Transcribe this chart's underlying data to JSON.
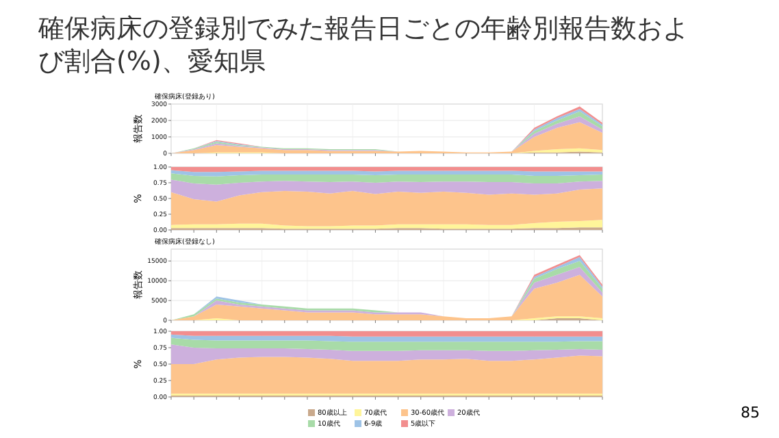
{
  "chart_data": [
    {
      "type": "area",
      "stacked": true,
      "title": "確保病床の登録別でみた報告日ごとの年齢別報告数および割合(%)、愛知県",
      "subtitle": "確保病床(登録あり)",
      "ylabel": "報告数",
      "grid": true,
      "tick_labels": "y",
      "categories": [
        null,
        null,
        null,
        null,
        null,
        null,
        null,
        null,
        null,
        null,
        null,
        null,
        null,
        null,
        null,
        null,
        null,
        null,
        null,
        null
      ],
      "ylim": [
        0,
        3000
      ],
      "yticks": [
        0,
        1000,
        2000,
        3000
      ],
      "series": [
        {
          "color": "#c9a98c",
          "values": [
            0,
            0,
            0,
            0,
            0,
            0,
            0,
            0,
            0,
            0,
            0,
            0,
            0,
            0,
            0,
            0,
            50,
            50,
            100,
            50
          ]
        },
        {
          "color": "#fff59a",
          "values": [
            0,
            0,
            50,
            50,
            50,
            0,
            0,
            0,
            0,
            0,
            0,
            0,
            0,
            0,
            0,
            0,
            100,
            200,
            200,
            150
          ]
        },
        {
          "color": "#fdc48c",
          "values": [
            0,
            200,
            450,
            350,
            250,
            200,
            200,
            150,
            150,
            150,
            100,
            150,
            100,
            50,
            50,
            100,
            850,
            1300,
            1600,
            1050
          ]
        },
        {
          "color": "#cdb0dd",
          "values": [
            0,
            50,
            100,
            50,
            50,
            50,
            50,
            50,
            50,
            50,
            0,
            0,
            0,
            0,
            0,
            0,
            200,
            250,
            350,
            200
          ]
        },
        {
          "color": "#a8dba8",
          "values": [
            0,
            50,
            100,
            50,
            50,
            50,
            50,
            50,
            50,
            50,
            0,
            0,
            0,
            0,
            0,
            0,
            150,
            200,
            300,
            200
          ]
        },
        {
          "color": "#9ec3e6",
          "values": [
            0,
            0,
            50,
            50,
            0,
            0,
            0,
            0,
            0,
            0,
            0,
            0,
            0,
            0,
            0,
            0,
            100,
            150,
            150,
            100
          ]
        },
        {
          "color": "#f28e8e",
          "values": [
            0,
            0,
            50,
            50,
            0,
            0,
            0,
            0,
            0,
            0,
            0,
            0,
            0,
            0,
            0,
            0,
            100,
            100,
            150,
            100
          ]
        }
      ]
    },
    {
      "type": "area",
      "stacked": true,
      "ylabel": "%",
      "grid": true,
      "tick_labels": "y",
      "categories": [
        null,
        null,
        null,
        null,
        null,
        null,
        null,
        null,
        null,
        null,
        null,
        null,
        null,
        null,
        null,
        null,
        null,
        null,
        null,
        null
      ],
      "ylim": [
        0,
        1
      ],
      "yticks": [
        {
          "value": 0,
          "label": "0.00"
        },
        {
          "value": 0.25,
          "label": "0.25"
        },
        {
          "value": 0.5,
          "label": "0.50"
        },
        {
          "value": 0.75,
          "label": "0.75"
        },
        {
          "value": 1,
          "label": "1.00"
        }
      ],
      "series": [
        {
          "color": "#c9a98c",
          "values": [
            0.03,
            0.03,
            0.03,
            0.03,
            0.03,
            0.02,
            0.02,
            0.02,
            0.02,
            0.02,
            0.03,
            0.03,
            0.02,
            0.02,
            0.02,
            0.02,
            0.03,
            0.03,
            0.04,
            0.04
          ]
        },
        {
          "color": "#fff59a",
          "values": [
            0.05,
            0.06,
            0.06,
            0.07,
            0.07,
            0.05,
            0.04,
            0.04,
            0.05,
            0.05,
            0.06,
            0.06,
            0.07,
            0.07,
            0.06,
            0.06,
            0.08,
            0.1,
            0.1,
            0.12
          ]
        },
        {
          "color": "#fdc48c",
          "values": [
            0.52,
            0.4,
            0.36,
            0.45,
            0.5,
            0.55,
            0.55,
            0.52,
            0.55,
            0.5,
            0.52,
            0.5,
            0.52,
            0.5,
            0.48,
            0.5,
            0.45,
            0.45,
            0.5,
            0.5
          ]
        },
        {
          "color": "#cdb0dd",
          "values": [
            0.2,
            0.25,
            0.27,
            0.2,
            0.17,
            0.16,
            0.16,
            0.18,
            0.15,
            0.18,
            0.16,
            0.17,
            0.16,
            0.18,
            0.2,
            0.18,
            0.18,
            0.16,
            0.13,
            0.12
          ]
        },
        {
          "color": "#a8dba8",
          "values": [
            0.1,
            0.12,
            0.13,
            0.12,
            0.11,
            0.1,
            0.11,
            0.12,
            0.11,
            0.12,
            0.11,
            0.12,
            0.11,
            0.11,
            0.12,
            0.12,
            0.12,
            0.12,
            0.1,
            0.1
          ]
        },
        {
          "color": "#9ec3e6",
          "values": [
            0.05,
            0.06,
            0.07,
            0.06,
            0.06,
            0.06,
            0.06,
            0.06,
            0.06,
            0.06,
            0.06,
            0.06,
            0.06,
            0.06,
            0.06,
            0.06,
            0.07,
            0.07,
            0.06,
            0.05
          ]
        },
        {
          "color": "#f28e8e",
          "values": [
            0.05,
            0.08,
            0.08,
            0.07,
            0.06,
            0.06,
            0.06,
            0.06,
            0.06,
            0.07,
            0.06,
            0.06,
            0.06,
            0.06,
            0.06,
            0.06,
            0.07,
            0.07,
            0.07,
            0.07
          ]
        }
      ]
    },
    {
      "type": "area",
      "stacked": true,
      "subtitle": "確保病床(登録なし)",
      "ylabel": "報告数",
      "grid": true,
      "tick_labels": "y",
      "categories": [
        null,
        null,
        null,
        null,
        null,
        null,
        null,
        null,
        null,
        null,
        null,
        null,
        null,
        null,
        null,
        null,
        null,
        null,
        null,
        null
      ],
      "ylim": [
        0,
        18000
      ],
      "yticks": [
        0,
        5000,
        10000,
        15000
      ],
      "series": [
        {
          "color": "#c9a98c",
          "values": [
            0,
            0,
            0,
            0,
            0,
            0,
            0,
            0,
            0,
            0,
            0,
            0,
            0,
            0,
            0,
            0,
            0,
            500,
            500,
            0
          ]
        },
        {
          "color": "#fff59a",
          "values": [
            0,
            0,
            500,
            0,
            0,
            0,
            0,
            0,
            0,
            0,
            0,
            0,
            0,
            0,
            0,
            0,
            500,
            500,
            500,
            500
          ]
        },
        {
          "color": "#fdc48c",
          "values": [
            0,
            1000,
            3500,
            3500,
            3000,
            2500,
            2000,
            2000,
            2000,
            1500,
            1500,
            1500,
            1000,
            500,
            500,
            1000,
            7500,
            8500,
            10500,
            5500
          ]
        },
        {
          "color": "#cdb0dd",
          "values": [
            0,
            0,
            1000,
            500,
            500,
            500,
            500,
            500,
            500,
            500,
            500,
            500,
            0,
            0,
            0,
            0,
            1500,
            2000,
            2000,
            1000
          ]
        },
        {
          "color": "#a8dba8",
          "values": [
            0,
            500,
            500,
            500,
            500,
            500,
            500,
            500,
            500,
            500,
            0,
            0,
            0,
            0,
            0,
            0,
            1000,
            1500,
            1500,
            1000
          ]
        },
        {
          "color": "#9ec3e6",
          "values": [
            0,
            0,
            500,
            500,
            0,
            0,
            0,
            0,
            0,
            0,
            0,
            0,
            0,
            0,
            0,
            0,
            500,
            500,
            1000,
            500
          ]
        },
        {
          "color": "#f28e8e",
          "values": [
            0,
            0,
            0,
            0,
            0,
            0,
            0,
            0,
            0,
            0,
            0,
            0,
            0,
            0,
            0,
            0,
            500,
            500,
            500,
            500
          ]
        }
      ]
    },
    {
      "type": "area",
      "stacked": true,
      "ylabel": "%",
      "grid": true,
      "tick_labels": "y",
      "legend": "bottom",
      "annotations": [
        "85"
      ],
      "categories": [
        null,
        null,
        null,
        null,
        null,
        null,
        null,
        null,
        null,
        null,
        null,
        null,
        null,
        null,
        null,
        null,
        null,
        null,
        null,
        null
      ],
      "ylim": [
        0,
        1
      ],
      "yticks": [
        {
          "value": 0,
          "label": "0.00"
        },
        {
          "value": 0.25,
          "label": "0.25"
        },
        {
          "value": 0.5,
          "label": "0.50"
        },
        {
          "value": 0.75,
          "label": "0.75"
        },
        {
          "value": 1,
          "label": "1.00"
        }
      ],
      "series": [
        {
          "name": "80歳以上",
          "color": "#c9a98c",
          "values": [
            0.02,
            0.02,
            0.02,
            0.02,
            0.02,
            0.02,
            0.02,
            0.02,
            0.02,
            0.02,
            0.02,
            0.02,
            0.02,
            0.02,
            0.02,
            0.02,
            0.02,
            0.02,
            0.02,
            0.02
          ]
        },
        {
          "name": "70歳代",
          "color": "#fff59a",
          "values": [
            0.03,
            0.03,
            0.03,
            0.03,
            0.03,
            0.03,
            0.03,
            0.03,
            0.03,
            0.03,
            0.03,
            0.03,
            0.03,
            0.03,
            0.03,
            0.03,
            0.03,
            0.03,
            0.03,
            0.03
          ]
        },
        {
          "name": "30-60歳代",
          "color": "#fdc48c",
          "values": [
            0.45,
            0.45,
            0.52,
            0.55,
            0.56,
            0.56,
            0.55,
            0.53,
            0.5,
            0.5,
            0.5,
            0.52,
            0.52,
            0.53,
            0.5,
            0.5,
            0.52,
            0.55,
            0.58,
            0.57
          ]
        },
        {
          "name": "20歳代",
          "color": "#cdb0dd",
          "values": [
            0.3,
            0.25,
            0.17,
            0.14,
            0.13,
            0.13,
            0.13,
            0.14,
            0.15,
            0.15,
            0.15,
            0.14,
            0.14,
            0.13,
            0.15,
            0.15,
            0.14,
            0.12,
            0.1,
            0.1
          ]
        },
        {
          "name": "10歳代",
          "color": "#a8dba8",
          "values": [
            0.1,
            0.12,
            0.12,
            0.12,
            0.12,
            0.12,
            0.13,
            0.13,
            0.14,
            0.14,
            0.14,
            0.13,
            0.13,
            0.13,
            0.14,
            0.14,
            0.13,
            0.12,
            0.12,
            0.13
          ]
        },
        {
          "name": "6-9歳",
          "color": "#9ec3e6",
          "values": [
            0.05,
            0.06,
            0.07,
            0.07,
            0.07,
            0.07,
            0.07,
            0.08,
            0.08,
            0.08,
            0.08,
            0.08,
            0.08,
            0.08,
            0.08,
            0.08,
            0.08,
            0.08,
            0.07,
            0.07
          ]
        },
        {
          "name": "5歳以下",
          "color": "#f28e8e",
          "values": [
            0.05,
            0.07,
            0.07,
            0.07,
            0.07,
            0.07,
            0.07,
            0.07,
            0.08,
            0.08,
            0.08,
            0.08,
            0.08,
            0.08,
            0.08,
            0.08,
            0.08,
            0.08,
            0.08,
            0.08
          ]
        }
      ]
    }
  ]
}
